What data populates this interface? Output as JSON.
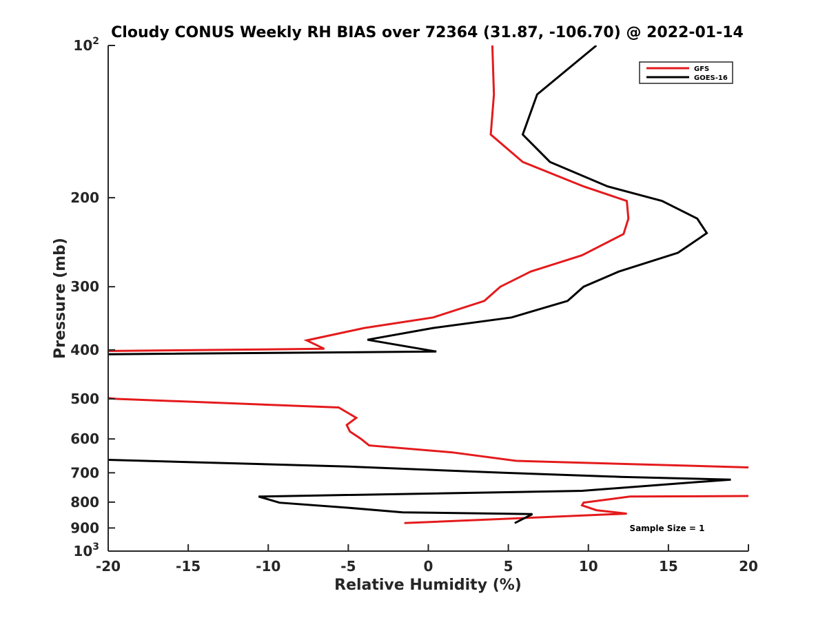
{
  "chart_data": {
    "type": "line",
    "title": "Cloudy CONUS Weekly RH BIAS over 72364 (31.87, -106.70) @ 2022-01-14",
    "xlabel": "Relative Humidity (%)",
    "ylabel": "Pressure (mb)",
    "xlim": [
      -20,
      20
    ],
    "ylim": [
      100,
      1000
    ],
    "y_scale": "log",
    "y_reversed": true,
    "grid": false,
    "legend_position": "top-right",
    "x_ticks": [
      "-20",
      "-15",
      "-10",
      "-5",
      "0",
      "5",
      "10",
      "15",
      "20"
    ],
    "y_ticks": [
      {
        "value": 100,
        "base": "10",
        "exp": "2"
      },
      {
        "value": 200,
        "label": "200"
      },
      {
        "value": 300,
        "label": "300"
      },
      {
        "value": 400,
        "label": "400"
      },
      {
        "value": 500,
        "label": "500"
      },
      {
        "value": 600,
        "label": "600"
      },
      {
        "value": 700,
        "label": "700"
      },
      {
        "value": 800,
        "label": "800"
      },
      {
        "value": 900,
        "label": "900"
      },
      {
        "value": 1000,
        "base": "10",
        "exp": "3"
      }
    ],
    "annotation": "Sample Size = 1",
    "series": [
      {
        "name": "GFS",
        "color": "#e41a1c",
        "segments": [
          [
            [
              4.0,
              100
            ],
            [
              4.1,
              125
            ],
            [
              3.9,
              150
            ],
            [
              5.9,
              170
            ],
            [
              9.7,
              190
            ],
            [
              12.4,
              203
            ],
            [
              12.5,
              220
            ],
            [
              12.2,
              236
            ],
            [
              9.6,
              260
            ],
            [
              6.4,
              280
            ],
            [
              4.5,
              300
            ],
            [
              3.5,
              320
            ],
            [
              0.3,
              345
            ],
            [
              -4.0,
              362
            ],
            [
              -7.6,
              383
            ],
            [
              -6.5,
              398
            ],
            [
              -20,
              402
            ]
          ],
          [
            [
              -20,
              498
            ],
            [
              -19.5,
              500
            ],
            [
              -5.6,
              520
            ],
            [
              -4.5,
              545
            ],
            [
              -5.1,
              563
            ],
            [
              -4.9,
              580
            ],
            [
              -4.2,
              600
            ],
            [
              -3.7,
              618
            ],
            [
              1.5,
              638
            ],
            [
              5.5,
              663
            ],
            [
              20.0,
              683
            ]
          ],
          [
            [
              20.0,
              778
            ],
            [
              12.6,
              780
            ],
            [
              9.7,
              802
            ],
            [
              9.6,
              812
            ],
            [
              10.5,
              830
            ],
            [
              12.4,
              843
            ],
            [
              -1.5,
              880
            ]
          ]
        ]
      },
      {
        "name": "GOES-16",
        "color": "#000000",
        "segments": [
          [
            [
              10.5,
              100
            ],
            [
              6.8,
              125
            ],
            [
              5.9,
              150
            ],
            [
              7.6,
              170
            ],
            [
              11.2,
              190
            ],
            [
              14.6,
              203
            ],
            [
              16.8,
              220
            ],
            [
              17.4,
              235
            ],
            [
              15.6,
              257
            ],
            [
              11.9,
              280
            ],
            [
              9.7,
              300
            ],
            [
              8.7,
              320
            ],
            [
              5.2,
              345
            ],
            [
              0.3,
              362
            ],
            [
              -3.8,
              382
            ],
            [
              0.5,
              403
            ],
            [
              -20,
              408
            ]
          ],
          [
            [
              -20,
              660
            ],
            [
              -5.2,
              680
            ],
            [
              4.7,
              700
            ],
            [
              12.0,
              713
            ],
            [
              18.9,
              722
            ],
            [
              15.6,
              735
            ],
            [
              9.6,
              760
            ],
            [
              -10.6,
              780
            ],
            [
              -9.3,
              802
            ],
            [
              -5.2,
              820
            ],
            [
              -1.6,
              838
            ],
            [
              6.5,
              845
            ],
            [
              5.4,
              880
            ]
          ]
        ]
      }
    ]
  }
}
